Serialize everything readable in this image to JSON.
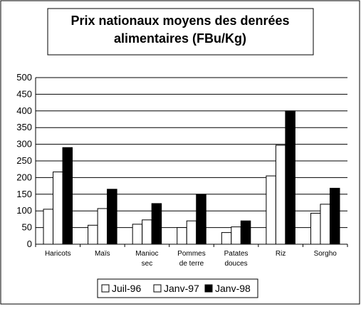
{
  "chart_data": {
    "type": "bar",
    "title": "Prix nationaux moyens des denrées alimentaires (FBu/Kg)",
    "categories": [
      "Haricots",
      "Maïs",
      "Manioc\nsec",
      "Pommes\nde terre",
      "Patates\ndouces",
      "Riz",
      "Sorgho"
    ],
    "series": [
      {
        "name": "Juil-96",
        "color": "#ffffff",
        "values": [
          105,
          57,
          60,
          50,
          35,
          205,
          93
        ]
      },
      {
        "name": "Janv-97",
        "color": "#ffffff",
        "values": [
          217,
          107,
          73,
          70,
          52,
          297,
          120
        ]
      },
      {
        "name": "Janv-98",
        "color": "#000000",
        "values": [
          290,
          165,
          122,
          150,
          70,
          400,
          168
        ]
      }
    ],
    "ylim": [
      0,
      500
    ],
    "yticks": [
      0,
      50,
      100,
      150,
      200,
      250,
      300,
      350,
      400,
      450,
      500
    ],
    "grid": true,
    "legend": "bottom"
  }
}
